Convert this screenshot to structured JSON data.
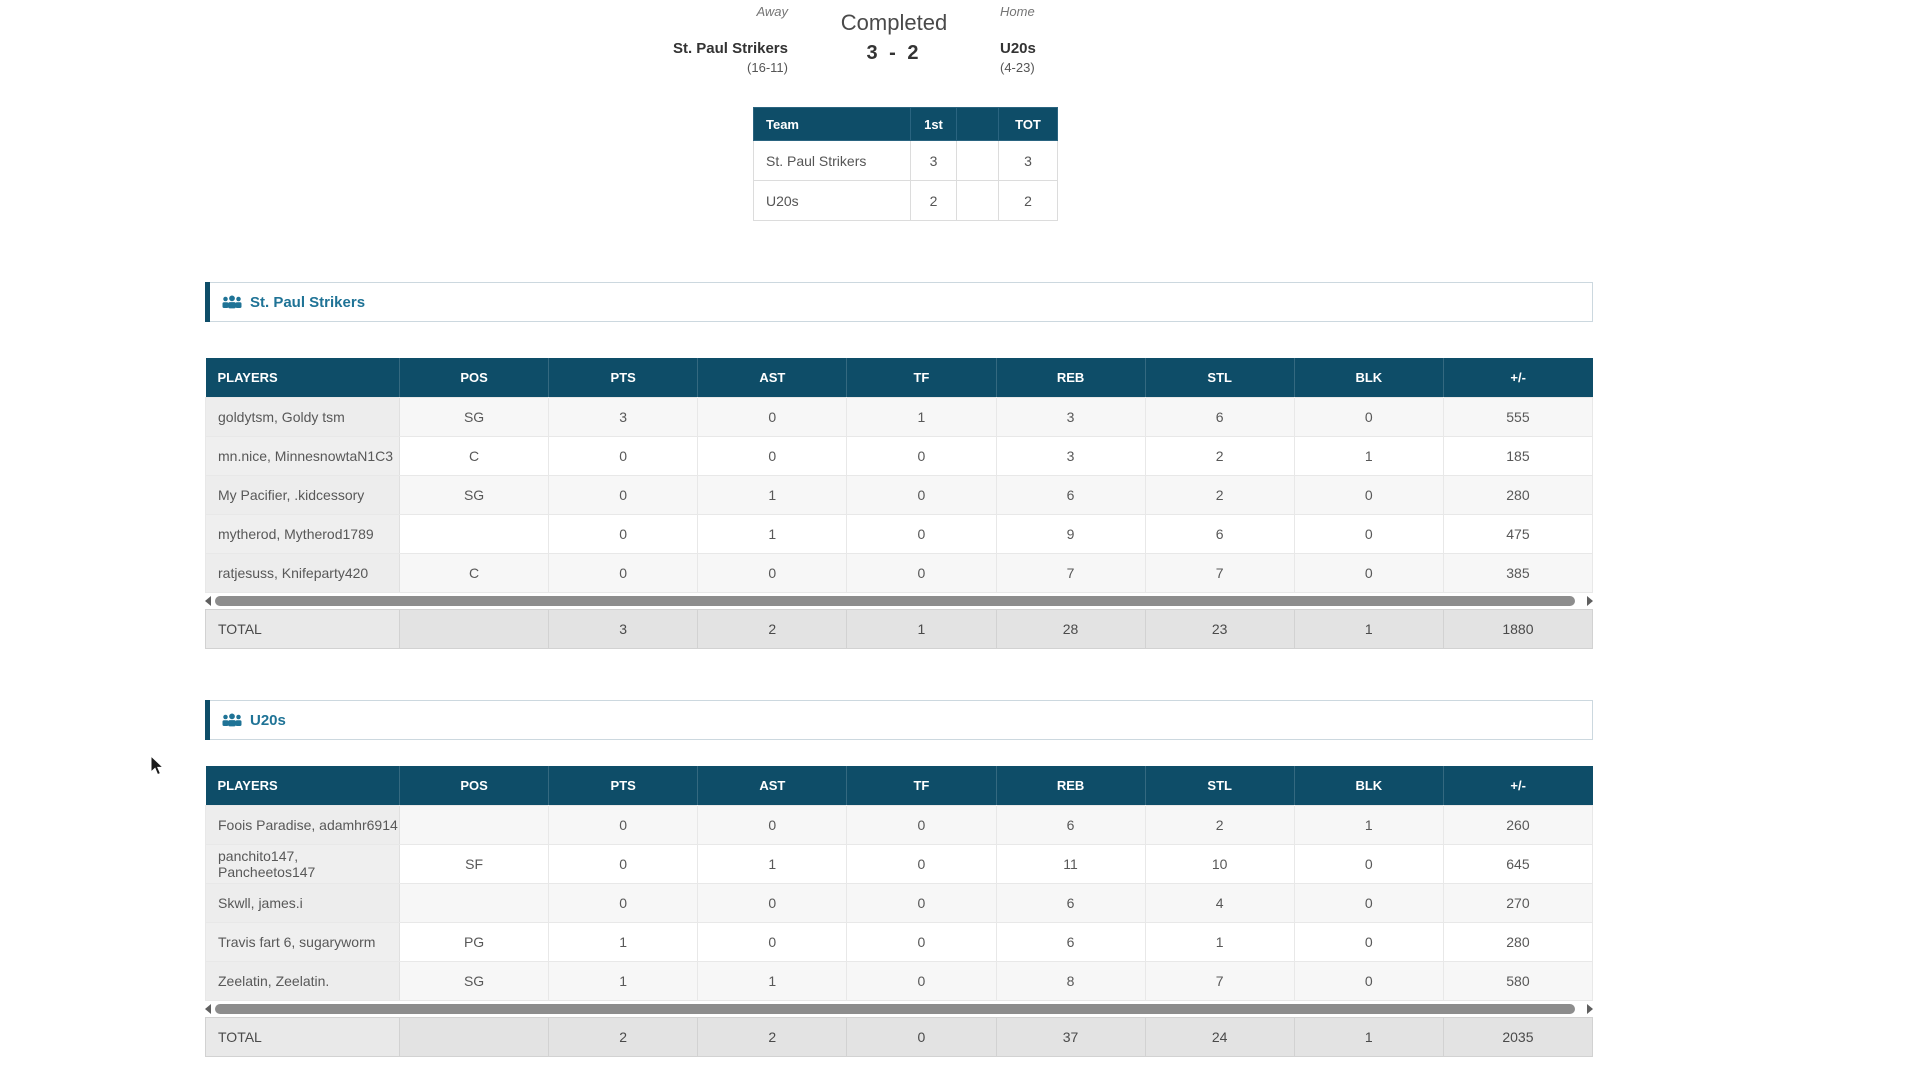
{
  "match": {
    "away": {
      "label": "Away",
      "team": "St. Paul Strikers",
      "record": "(16-11)"
    },
    "home": {
      "label": "Home",
      "team": "U20s",
      "record": "(4-23)"
    },
    "status": "Completed",
    "score": "3 - 2"
  },
  "linescore": {
    "headers": [
      "Team",
      "1st",
      "",
      "TOT"
    ],
    "rows": [
      [
        "St. Paul Strikers",
        "3",
        "",
        "3"
      ],
      [
        "U20s",
        "2",
        "",
        "2"
      ]
    ]
  },
  "stat_columns": [
    "PLAYERS",
    "POS",
    "PTS",
    "AST",
    "TF",
    "REB",
    "STL",
    "BLK",
    "+/-"
  ],
  "total_label": "TOTAL",
  "sections": [
    {
      "title": "St. Paul Strikers",
      "rows": [
        [
          "goldytsm, Goldy tsm",
          "SG",
          "3",
          "0",
          "1",
          "3",
          "6",
          "0",
          "555"
        ],
        [
          "mn.nice, MinnesnowtaN1C3",
          "C",
          "0",
          "0",
          "0",
          "3",
          "2",
          "1",
          "185"
        ],
        [
          "My Pacifier, .kidcessory",
          "SG",
          "0",
          "1",
          "0",
          "6",
          "2",
          "0",
          "280"
        ],
        [
          "mytherod, Mytherod1789",
          "",
          "0",
          "1",
          "0",
          "9",
          "6",
          "0",
          "475"
        ],
        [
          "ratjesuss, Knifeparty420",
          "C",
          "0",
          "0",
          "0",
          "7",
          "7",
          "0",
          "385"
        ]
      ],
      "total": [
        "TOTAL",
        "",
        "3",
        "2",
        "1",
        "28",
        "23",
        "1",
        "1880"
      ]
    },
    {
      "title": "U20s",
      "rows": [
        [
          "Foois Paradise, adamhr6914",
          "",
          "0",
          "0",
          "0",
          "6",
          "2",
          "1",
          "260"
        ],
        [
          "panchito147, Pancheetos147",
          "SF",
          "0",
          "1",
          "0",
          "11",
          "10",
          "0",
          "645"
        ],
        [
          "Skwll, james.i",
          "",
          "0",
          "0",
          "0",
          "6",
          "4",
          "0",
          "270"
        ],
        [
          "Travis fart 6, sugaryworm",
          "PG",
          "1",
          "0",
          "0",
          "6",
          "1",
          "0",
          "280"
        ],
        [
          "Zeelatin, Zeelatin.",
          "SG",
          "1",
          "1",
          "0",
          "8",
          "7",
          "0",
          "580"
        ]
      ],
      "total": [
        "TOTAL",
        "",
        "2",
        "2",
        "0",
        "37",
        "24",
        "1",
        "2035"
      ]
    }
  ],
  "icons": [
    "users-icon",
    "scroll-left-arrow-icon",
    "scroll-right-arrow-icon",
    "mouse-cursor-icon"
  ],
  "colors": {
    "table_header_bg": "#0e4d68",
    "section_accent": "#0e4d68",
    "section_title_text": "#1f7396",
    "total_row_bg": "#e3e3e3",
    "row_stripe_bg": "#f7f7f7",
    "first_col_bg": "#efefef",
    "scroll_thumb": "#8d8d8d"
  }
}
